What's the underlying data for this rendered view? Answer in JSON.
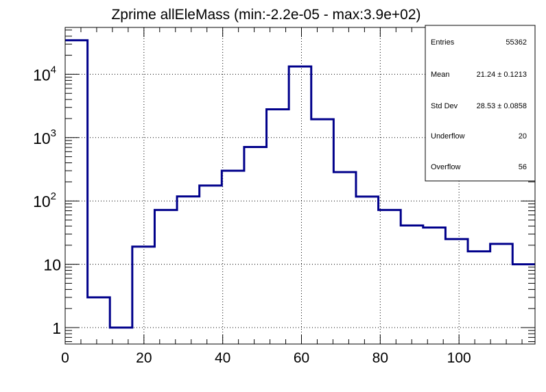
{
  "chart_data": {
    "type": "histogram",
    "title": "Zprime allEleMass (min:-2.2e-05 - max:3.9e+02)",
    "xlabel": "",
    "ylabel": "",
    "xlim": [
      0,
      119.3
    ],
    "ylim": [
      0.55,
      55000
    ],
    "yscale": "log",
    "grid": true,
    "line_color": "#00008b",
    "bin_edges": [
      0,
      5.68,
      11.36,
      17.04,
      22.72,
      28.4,
      34.08,
      39.76,
      45.44,
      51.12,
      56.8,
      62.48,
      68.16,
      73.84,
      79.52,
      85.2,
      90.88,
      96.56,
      102.24,
      107.92,
      113.6,
      119.3
    ],
    "values": [
      34500,
      3,
      1,
      19,
      72,
      118,
      175,
      300,
      710,
      2800,
      13300,
      1950,
      285,
      117,
      72,
      41,
      38,
      25,
      16,
      21,
      10
    ],
    "x_ticks": [
      {
        "value": 0,
        "label": "0"
      },
      {
        "value": 20,
        "label": "20"
      },
      {
        "value": 40,
        "label": "40"
      },
      {
        "value": 60,
        "label": "60"
      },
      {
        "value": 80,
        "label": "80"
      },
      {
        "value": 100,
        "label": "100"
      }
    ],
    "y_ticks": [
      {
        "value": 1,
        "base": "1",
        "exp": ""
      },
      {
        "value": 10,
        "base": "10",
        "exp": ""
      },
      {
        "value": 100,
        "base": "10",
        "exp": "2"
      },
      {
        "value": 1000,
        "base": "10",
        "exp": "3"
      },
      {
        "value": 10000,
        "base": "10",
        "exp": "4"
      }
    ],
    "stats": [
      {
        "label": "Entries",
        "value": "55362"
      },
      {
        "label": "Mean",
        "value": "21.24  ± 0.1213"
      },
      {
        "label": "Std Dev",
        "value": "28.53  ± 0.0858"
      },
      {
        "label": "Underflow",
        "value": "20"
      },
      {
        "label": "Overflow",
        "value": "56"
      }
    ]
  }
}
